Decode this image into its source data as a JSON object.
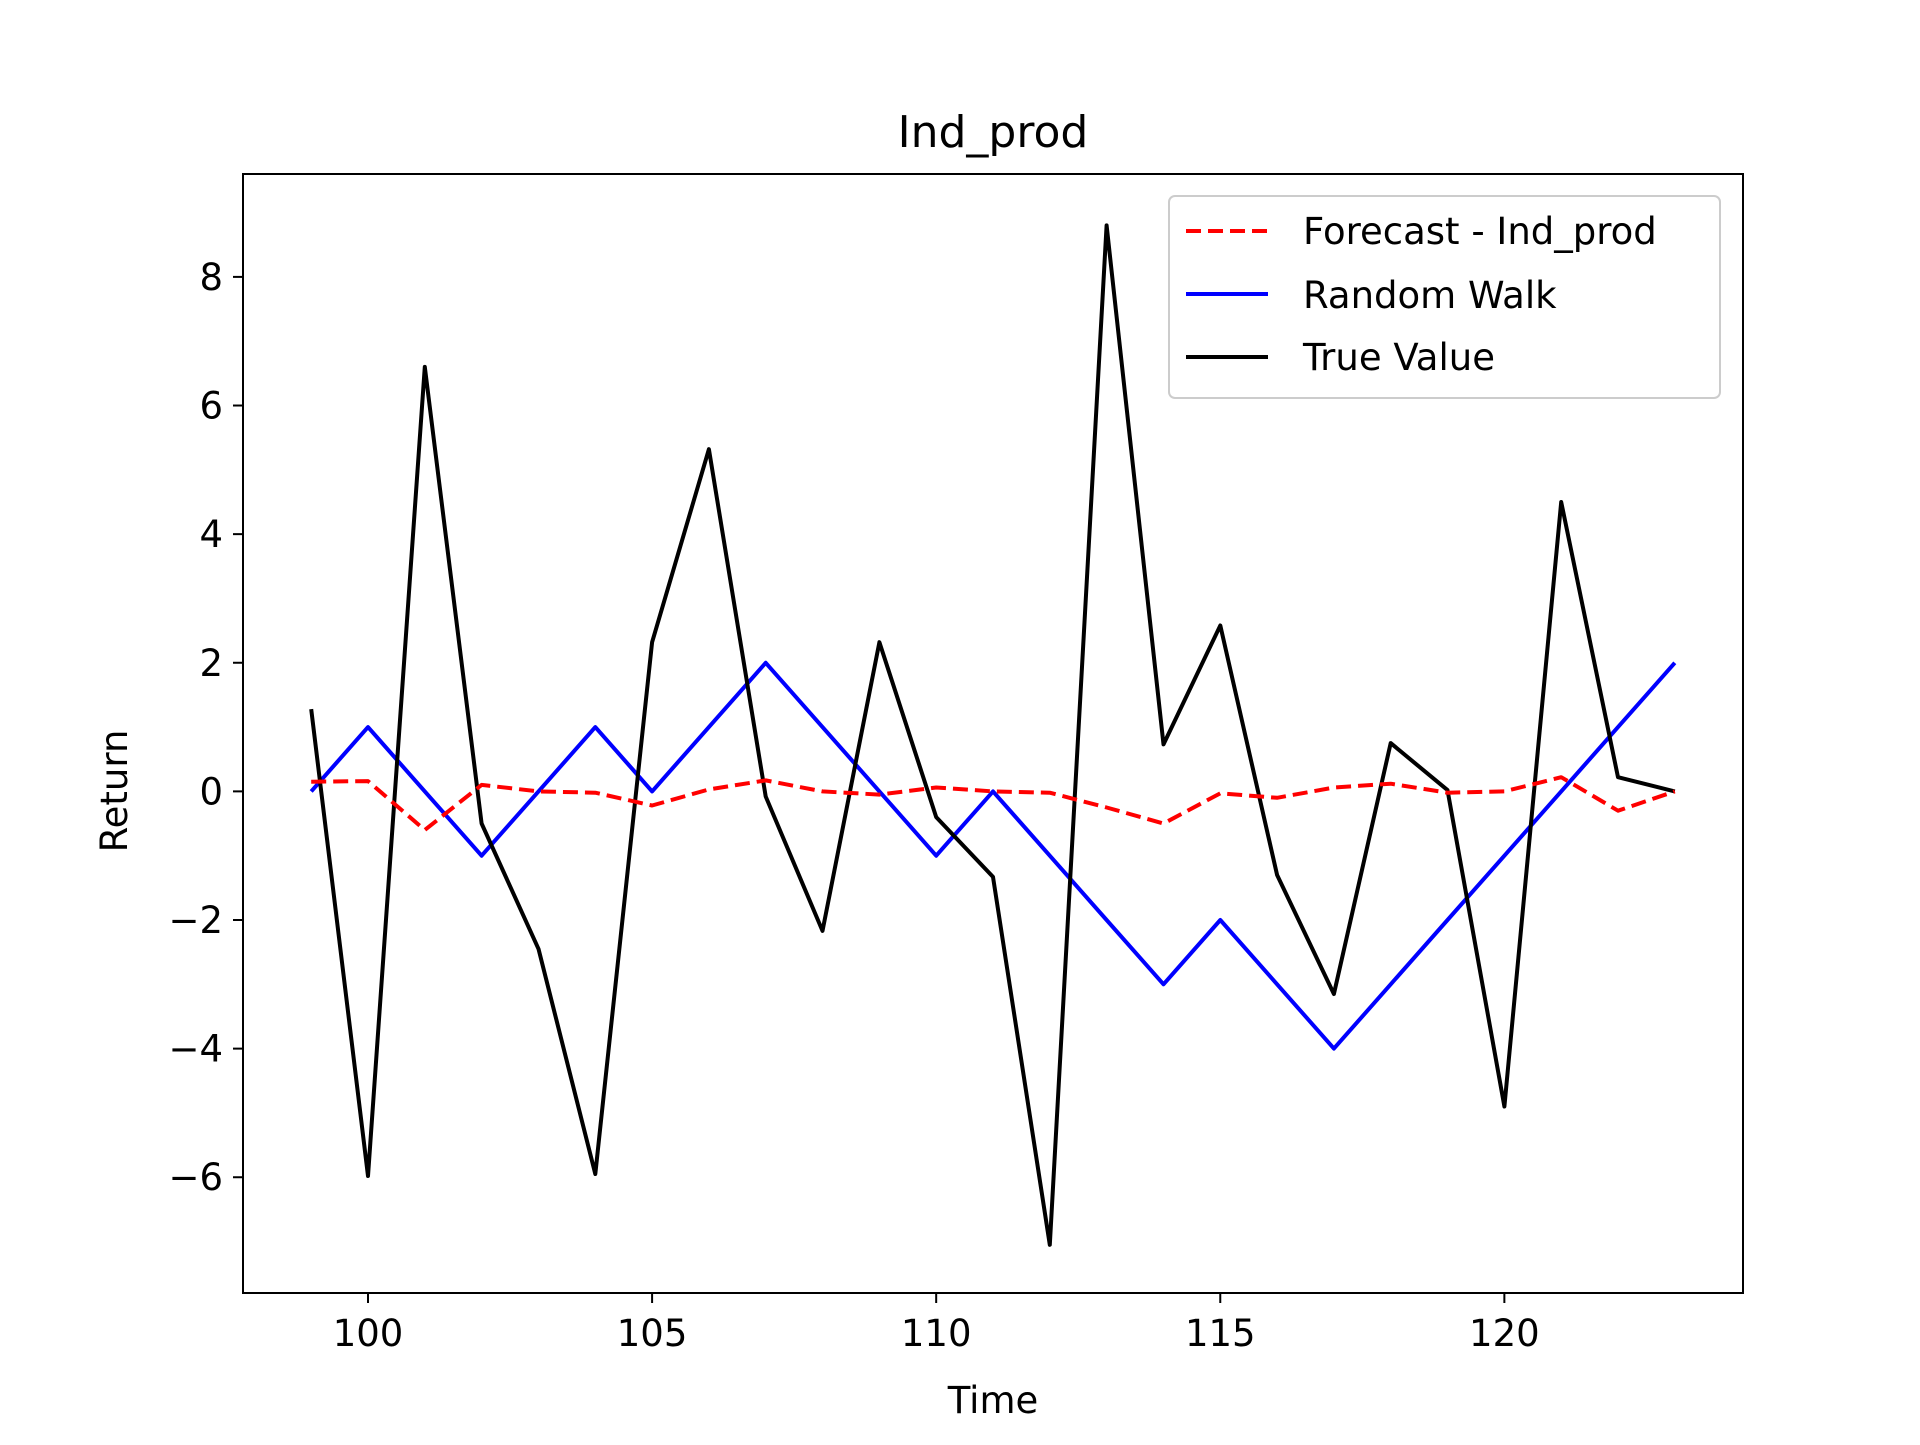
{
  "chart_data": {
    "type": "line",
    "title": "Ind_prod",
    "xlabel": "Time",
    "ylabel": "Return",
    "xlim": [
      97.8,
      124.2
    ],
    "ylim": [
      -7.8,
      9.6
    ],
    "xticks": [
      100,
      105,
      110,
      115,
      120
    ],
    "yticks": [
      -6,
      -4,
      -2,
      0,
      2,
      4,
      6,
      8
    ],
    "xtick_labels": [
      "100",
      "105",
      "110",
      "115",
      "120"
    ],
    "ytick_labels": [
      "−6",
      "−4",
      "−2",
      "0",
      "2",
      "4",
      "6",
      "8"
    ],
    "grid": false,
    "legend_position": "top-right",
    "x": [
      99,
      100,
      101,
      102,
      103,
      104,
      105,
      106,
      107,
      108,
      109,
      110,
      111,
      112,
      113,
      114,
      115,
      116,
      117,
      118,
      119,
      120,
      121,
      122,
      123
    ],
    "series": [
      {
        "name": "Forecast - Ind_prod",
        "color": "#ff0000",
        "style": "dashed",
        "values": [
          0.15,
          0.16,
          -0.6,
          0.1,
          0.0,
          -0.02,
          -0.22,
          0.03,
          0.17,
          0.0,
          -0.05,
          0.06,
          0.0,
          -0.02,
          -0.25,
          -0.5,
          -0.03,
          -0.1,
          0.06,
          0.12,
          -0.02,
          0.0,
          0.22,
          -0.3,
          0.0
        ]
      },
      {
        "name": "Random Walk",
        "color": "#0000ff",
        "style": "solid",
        "values": [
          0,
          1,
          0,
          -1,
          0,
          1,
          0,
          1,
          2,
          1,
          0,
          -1,
          0,
          -1,
          -2,
          -3,
          -2,
          -3,
          -4,
          -3,
          -2,
          -1,
          0,
          1,
          2
        ]
      },
      {
        "name": "True Value",
        "color": "#000000",
        "style": "solid",
        "values": [
          1.28,
          -5.98,
          6.6,
          -0.5,
          -2.45,
          -5.95,
          2.32,
          5.32,
          -0.08,
          -2.17,
          2.32,
          -0.4,
          -1.33,
          -7.05,
          8.8,
          0.73,
          2.58,
          -1.3,
          -3.15,
          0.75,
          0.02,
          -4.9,
          4.5,
          0.22,
          0.0
        ]
      }
    ]
  }
}
